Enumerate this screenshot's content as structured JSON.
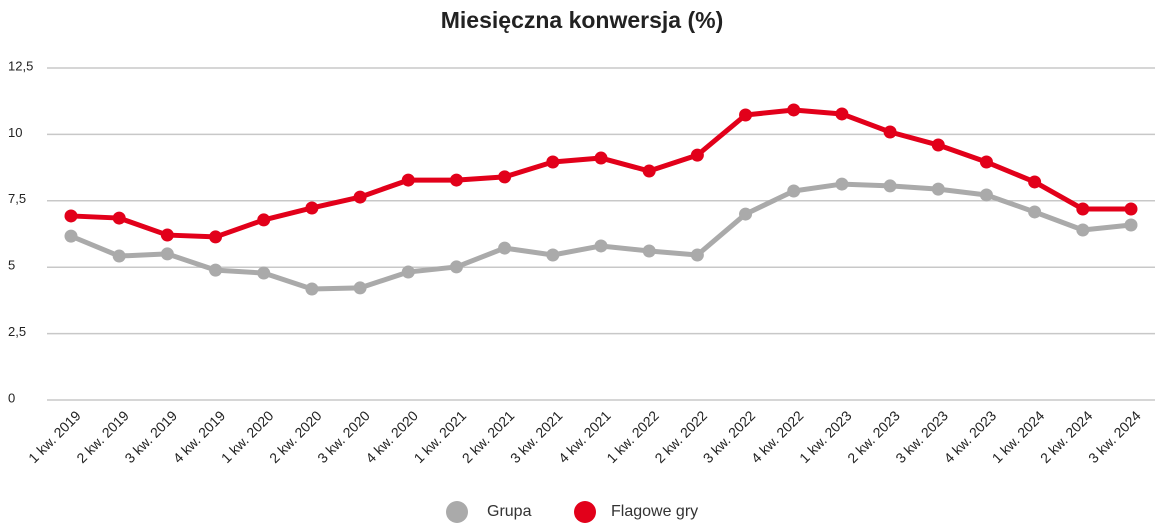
{
  "chart_data": {
    "type": "line",
    "title": "Miesięczna konwersja (%)",
    "categories": [
      "1 kw. 2019",
      "2 kw. 2019",
      "3 kw. 2019",
      "4 kw. 2019",
      "1 kw. 2020",
      "2 kw. 2020",
      "3 kw. 2020",
      "4 kw. 2020",
      "1 kw. 2021",
      "2 kw. 2021",
      "3 kw. 2021",
      "4 kw. 2021",
      "1 kw. 2022",
      "2 kw. 2022",
      "3 kw. 2022",
      "4 kw. 2022",
      "1 kw. 2023",
      "2 kw. 2023",
      "3 kw. 2023",
      "4 kw. 2023",
      "1 kw. 2024",
      "2 kw. 2024",
      "3 kw. 2024"
    ],
    "series": [
      {
        "name": "Grupa",
        "color": "#aaaaaa",
        "values": [
          6.17,
          5.42,
          5.5,
          4.89,
          4.78,
          4.18,
          4.22,
          4.82,
          5.01,
          5.72,
          5.46,
          5.8,
          5.61,
          5.46,
          7.0,
          7.87,
          8.13,
          8.06,
          7.94,
          7.72,
          7.08,
          6.4,
          6.59
        ]
      },
      {
        "name": "Flagowe gry",
        "color": "#e2001a",
        "values": [
          6.93,
          6.85,
          6.21,
          6.14,
          6.78,
          7.23,
          7.64,
          8.28,
          8.28,
          8.4,
          8.96,
          9.11,
          8.62,
          9.22,
          10.73,
          10.92,
          10.77,
          10.09,
          9.6,
          8.96,
          8.21,
          7.19,
          7.19
        ]
      }
    ],
    "ylim": [
      0,
      12.5
    ],
    "yticks": [
      0,
      {
        "value": 2.5,
        "label": "2,5"
      },
      5,
      {
        "value": 7.5,
        "label": "7,5"
      },
      10,
      {
        "value": 12.5,
        "label": "12,5"
      }
    ],
    "grid": true
  }
}
